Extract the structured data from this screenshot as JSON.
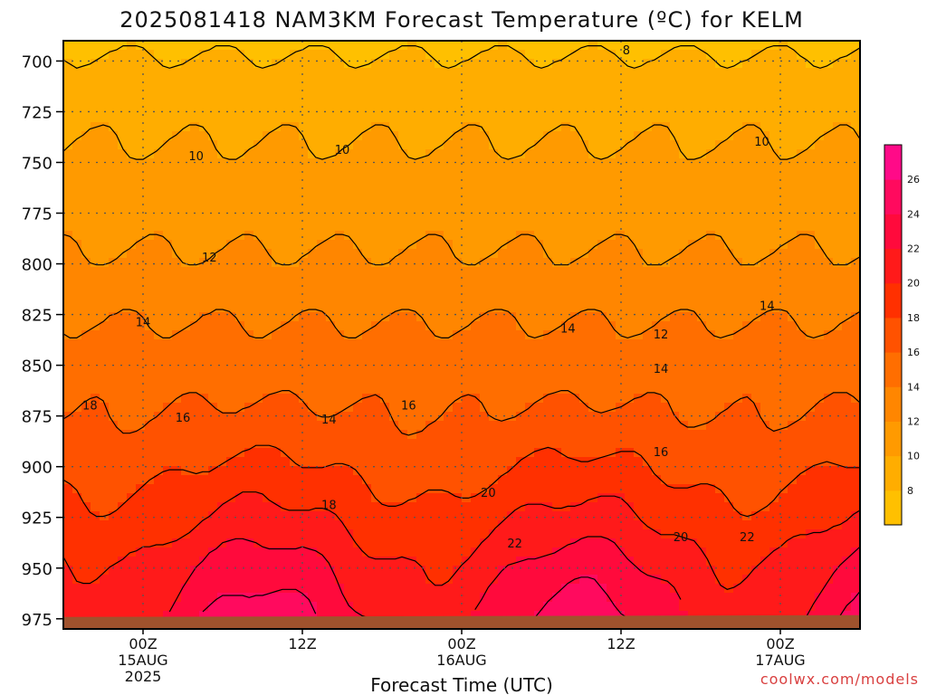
{
  "chart_data": {
    "type": "heatmap",
    "title": "2025081418 NAM3KM Forecast Temperature (ºC) for KELM",
    "xlabel": "Forecast Time (UTC)",
    "ylabel": "",
    "credit": "coolwx.com/models",
    "y_axis": {
      "reversed": true,
      "ylim": [
        980,
        690
      ],
      "ticks": [
        700,
        725,
        750,
        775,
        800,
        825,
        850,
        875,
        900,
        925,
        950,
        975
      ]
    },
    "x_axis": {
      "xlim_hours_from_run": [
        0,
        60
      ],
      "ticks": [
        {
          "hour": 6,
          "lines": [
            "00Z",
            "15AUG",
            "2025"
          ]
        },
        {
          "hour": 18,
          "lines": [
            "12Z"
          ]
        },
        {
          "hour": 30,
          "lines": [
            "00Z",
            "16AUG"
          ]
        },
        {
          "hour": 42,
          "lines": [
            "12Z"
          ]
        },
        {
          "hour": 54,
          "lines": [
            "00Z",
            "17AUG"
          ]
        }
      ]
    },
    "grid": true,
    "ground_surface_hpa": 975,
    "colorbar": {
      "levels": [
        8,
        10,
        12,
        14,
        16,
        18,
        20,
        22,
        24,
        26
      ],
      "colors": [
        "#ffc000",
        "#ffad00",
        "#ff9a00",
        "#ff8600",
        "#ff6e00",
        "#ff5200",
        "#ff3000",
        "#ff1a1a",
        "#ff0a3c",
        "#ff0a5e",
        "#ff0a88"
      ]
    },
    "contour_labels": [
      {
        "text": "8",
        "hour": 42.4,
        "p": 695
      },
      {
        "text": "10",
        "hour": 10,
        "p": 747
      },
      {
        "text": "10",
        "hour": 21,
        "p": 744
      },
      {
        "text": "10",
        "hour": 52.6,
        "p": 740
      },
      {
        "text": "12",
        "hour": 11,
        "p": 797
      },
      {
        "text": "12",
        "hour": 45,
        "p": 835
      },
      {
        "text": "14",
        "hour": 6,
        "p": 829
      },
      {
        "text": "14",
        "hour": 20,
        "p": 877
      },
      {
        "text": "14",
        "hour": 38,
        "p": 832
      },
      {
        "text": "14",
        "hour": 45,
        "p": 852
      },
      {
        "text": "14",
        "hour": 53,
        "p": 821
      },
      {
        "text": "16",
        "hour": 9,
        "p": 876
      },
      {
        "text": "16",
        "hour": 26,
        "p": 870
      },
      {
        "text": "16",
        "hour": 45,
        "p": 893
      },
      {
        "text": "18",
        "hour": 2,
        "p": 870
      },
      {
        "text": "18",
        "hour": 20,
        "p": 919
      },
      {
        "text": "20",
        "hour": 32,
        "p": 913
      },
      {
        "text": "20",
        "hour": 46.5,
        "p": 935
      },
      {
        "text": "22",
        "hour": 34,
        "p": 938
      },
      {
        "text": "22",
        "hour": 51.5,
        "p": 935
      }
    ],
    "temperature_profile": [
      {
        "p": 690,
        "t": 7.5
      },
      {
        "p": 700,
        "t": 8.2
      },
      {
        "p": 725,
        "t": 9.4
      },
      {
        "p": 750,
        "t": 10.4
      },
      {
        "p": 775,
        "t": 11.2
      },
      {
        "p": 800,
        "t": 12.3
      },
      {
        "p": 825,
        "t": 13.8
      },
      {
        "p": 850,
        "t": 15.0
      },
      {
        "p": 875,
        "t": 16.2
      },
      {
        "p": 900,
        "t": 17.8
      },
      {
        "p": 925,
        "t": 19.6
      },
      {
        "p": 950,
        "t": 21.6
      },
      {
        "p": 975,
        "t": 23.0
      }
    ]
  }
}
